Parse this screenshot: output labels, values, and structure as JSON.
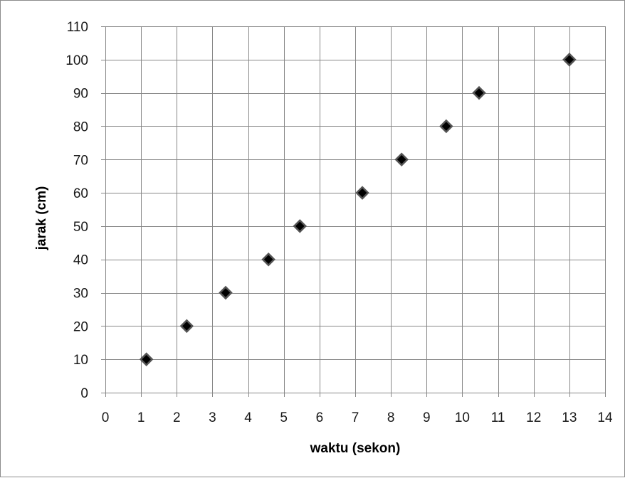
{
  "chart_data": {
    "type": "scatter",
    "title": "",
    "xlabel": "waktu (sekon)",
    "ylabel": "jarak (cm)",
    "xlim": [
      0,
      14
    ],
    "ylim": [
      0,
      110
    ],
    "xticks": [
      0,
      1,
      2,
      3,
      4,
      5,
      6,
      7,
      8,
      9,
      10,
      11,
      12,
      13,
      14
    ],
    "yticks": [
      0,
      10,
      20,
      30,
      40,
      50,
      60,
      70,
      80,
      90,
      100,
      110
    ],
    "grid": true,
    "legend": "none",
    "marker": "diamond",
    "marker_color": "#000000",
    "marker_edge_color": "#555555",
    "gridline_color": "#878787",
    "series": [
      {
        "x": [
          1.15,
          2.28,
          3.37,
          4.57,
          5.45,
          7.2,
          8.3,
          9.55,
          10.47,
          13.0
        ],
        "y": [
          10,
          20,
          30,
          40,
          50,
          60,
          70,
          80,
          90,
          100
        ]
      }
    ]
  }
}
